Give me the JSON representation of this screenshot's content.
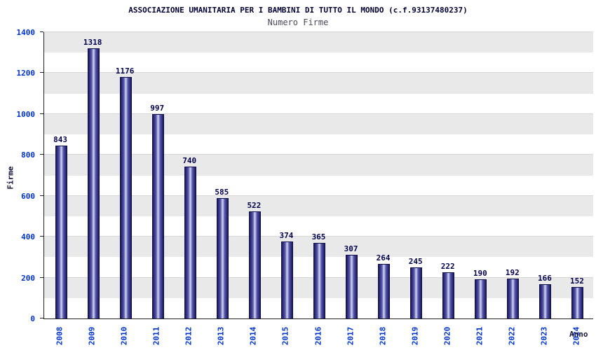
{
  "chart_data": {
    "type": "bar",
    "title": "ASSOCIAZIONE UMANITARIA PER I BAMBINI DI TUTTO IL MONDO (c.f.93137480237)",
    "subtitle": "Numero Firme",
    "xlabel": "Anno",
    "ylabel": "Firme",
    "categories": [
      "2008",
      "2009",
      "2010",
      "2011",
      "2012",
      "2013",
      "2014",
      "2015",
      "2016",
      "2017",
      "2018",
      "2019",
      "2020",
      "2021",
      "2022",
      "2023",
      "2024"
    ],
    "values": [
      843,
      1318,
      1176,
      997,
      740,
      585,
      522,
      374,
      365,
      307,
      264,
      245,
      222,
      190,
      192,
      166,
      152
    ],
    "ylim": [
      0,
      1400
    ],
    "ytick_step": 200,
    "band_step": 100,
    "grid": "on",
    "legend": "none",
    "colors": {
      "title": "#000033",
      "subtitle": "#4a4a5a",
      "axis_tick_label": "#0033cc",
      "axis_title": "#14143c",
      "value_label": "#00004d",
      "bar_dark": "#17175e",
      "bar_mid": "#5b5bb0",
      "bar_light": "#d9d9f2",
      "band": "#e9e9e9",
      "grid_line": "#d6d6d6"
    }
  }
}
